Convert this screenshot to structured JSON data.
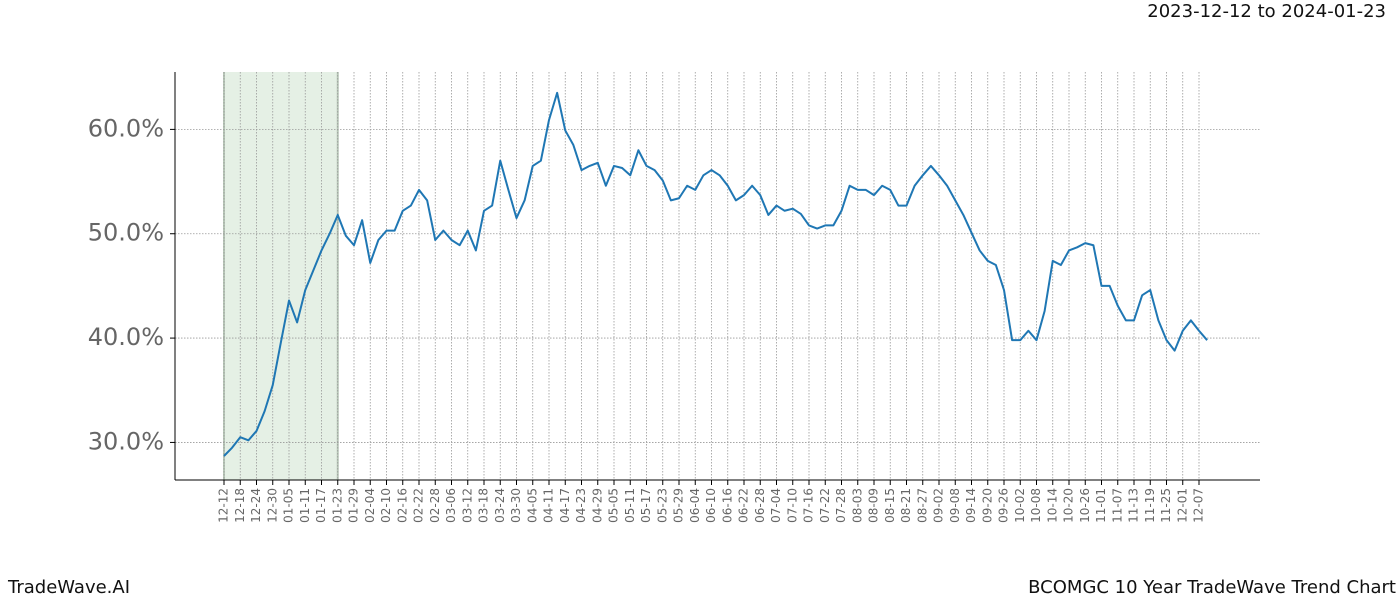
{
  "chart_data": {
    "type": "line",
    "date_range": "2023-12-12 to 2024-01-23",
    "brand": "TradeWave.AI",
    "title": "BCOMGC 10 Year TradeWave Trend Chart",
    "highlight_range": [
      "12-12",
      "01-23"
    ],
    "categories": [
      "12-12",
      null,
      "12-18",
      null,
      "12-24",
      null,
      "12-30",
      null,
      "01-05",
      null,
      "01-11",
      null,
      "01-17",
      null,
      "01-23",
      null,
      "01-29",
      null,
      "02-04",
      null,
      "02-10",
      null,
      "02-16",
      null,
      "02-22",
      null,
      "02-28",
      null,
      "03-06",
      null,
      "03-12",
      null,
      "03-18",
      null,
      "03-24",
      null,
      "03-30",
      null,
      "04-05",
      null,
      "04-11",
      null,
      "04-17",
      null,
      "04-23",
      null,
      "04-29",
      null,
      "05-05",
      null,
      "05-11",
      null,
      "05-17",
      null,
      "05-23",
      null,
      "05-29",
      null,
      "06-04",
      null,
      "06-10",
      null,
      "06-16",
      null,
      "06-22",
      null,
      "06-28",
      null,
      "07-04",
      null,
      "07-10",
      null,
      "07-16",
      null,
      "07-22",
      null,
      "07-28",
      null,
      "08-03",
      null,
      "08-09",
      null,
      "08-15",
      null,
      "08-21",
      null,
      "08-27",
      null,
      "09-02",
      null,
      "09-08",
      null,
      "09-14",
      null,
      "09-20",
      null,
      "09-26",
      null,
      "10-02",
      null,
      "10-08",
      null,
      "10-14",
      null,
      "10-20",
      null,
      "10-26",
      null,
      "11-01",
      null,
      "11-07",
      null,
      "11-13",
      null,
      "11-19",
      null,
      "11-25",
      null,
      "12-01",
      null,
      "12-07",
      null
    ],
    "series": [
      {
        "color": "#1f77b4",
        "values": [
          28.7,
          29.5,
          30.5,
          30.2,
          31.1,
          33.0,
          35.5,
          39.6,
          43.6,
          41.5,
          44.6,
          46.5,
          48.4,
          50.0,
          51.8,
          49.8,
          48.9,
          51.3,
          47.2,
          49.4,
          50.3,
          50.3,
          52.2,
          52.7,
          54.2,
          53.2,
          49.4,
          50.3,
          49.4,
          48.9,
          50.3,
          48.4,
          52.2,
          52.7,
          57.0,
          54.2,
          51.5,
          53.2,
          56.5,
          57.0,
          60.9,
          63.5,
          59.9,
          58.5,
          56.1,
          56.5,
          56.8,
          54.6,
          56.5,
          56.3,
          55.6,
          58.0,
          56.5,
          56.1,
          55.1,
          53.2,
          53.4,
          54.6,
          54.2,
          55.6,
          56.1,
          55.6,
          54.6,
          53.2,
          53.7,
          54.6,
          53.7,
          51.8,
          52.7,
          52.2,
          52.4,
          51.9,
          50.8,
          50.5,
          50.8,
          50.8,
          52.2,
          54.6,
          54.2,
          54.2,
          53.7,
          54.6,
          54.2,
          52.7,
          52.7,
          54.6,
          55.6,
          56.5,
          55.6,
          54.6,
          53.2,
          51.8,
          50.1,
          48.4,
          47.4,
          47.0,
          44.6,
          39.8,
          39.8,
          40.7,
          39.8,
          42.6,
          47.4,
          47.0,
          48.4,
          48.7,
          49.1,
          48.9,
          45.0,
          45.0,
          43.1,
          41.7,
          41.7,
          44.1,
          44.6,
          41.7,
          39.8,
          38.8,
          40.7,
          41.7,
          40.7,
          39.8
        ]
      }
    ],
    "ylim": [
      26.4,
      65.5
    ],
    "yticks": [
      {
        "value": 30,
        "label": "30.0%"
      },
      {
        "value": 40,
        "label": "40.0%"
      },
      {
        "value": 50,
        "label": "50.0%"
      },
      {
        "value": 60,
        "label": "60.0%"
      }
    ],
    "grid": true
  }
}
